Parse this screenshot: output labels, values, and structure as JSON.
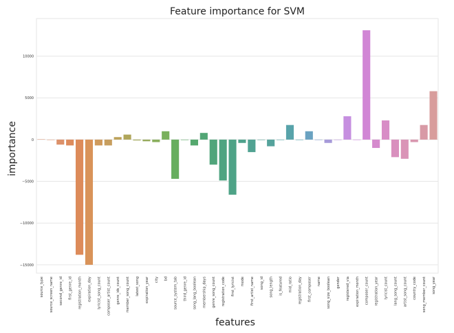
{
  "chart_data": {
    "type": "bar",
    "title": "Feature importance for SVM",
    "xlabel": "features",
    "ylabel": "importance",
    "ylim": [
      -16000,
      14500
    ],
    "yticks": [
      -15000,
      -10000,
      -5000,
      0,
      5000,
      10000
    ],
    "grid": true,
    "categories": [
      "source_type",
      "source_screen_name",
      "second_genre_id",
      "first_genre_id",
      "registration_month",
      "expiration_day",
      "lyricist_song_count",
      "composer_artist_count",
      "genre_ids_count",
      "member_song_count",
      "latest_song",
      "expiration_year",
      "city",
      "bd",
      "source_system_tab",
      "third_genre_id",
      "song_lang_boolean",
      "membership_days",
      "genre_song_count",
      "registration_code",
      "first_lyricist",
      "mode",
      "first_artist_name",
      "song_id",
      "song_length",
      "is_featured",
      "mid_ratio",
      "registration_day",
      "first_composer",
      "name",
      "song_size_boolean",
      "gender",
      "registered_via",
      "expiration_month",
      "composer_count",
      "registration_year",
      "lyricist_count",
      "lang_song_count",
      "artist_song_count",
      "country_code",
      "song_member_count",
      "song_year"
    ],
    "values": [
      50,
      0,
      -600,
      -700,
      -13800,
      -15000,
      -700,
      -700,
      300,
      600,
      -100,
      -200,
      -300,
      1000,
      -4700,
      -50,
      -700,
      800,
      -3000,
      -4900,
      -6600,
      -400,
      -1500,
      -50,
      -800,
      0,
      1750,
      0,
      1000,
      0,
      -400,
      0,
      2800,
      0,
      13100,
      -1000,
      2300,
      -2100,
      -2300,
      -300,
      1750,
      5800
    ],
    "colors": [
      "#e2a88c",
      "#df9e7c",
      "#dc916a",
      "#dd8b5c",
      "#dd8b5a",
      "#d99359",
      "#cf9a5c",
      "#c79e5e",
      "#bca25a",
      "#b0a65b",
      "#a3a85b",
      "#97aa5c",
      "#89ae5c",
      "#79b05c",
      "#67ae5f",
      "#5aaa66",
      "#55a86e",
      "#52a675",
      "#50a57b",
      "#4fa481",
      "#4ea387",
      "#4fa28c",
      "#51a292",
      "#53a297",
      "#55a39c",
      "#57a3a3",
      "#58a3aa",
      "#5aa4b2",
      "#6aa2c1",
      "#88a0cc",
      "#a69ad9",
      "#bb95de",
      "#c68fe0",
      "#cc8bdd",
      "#d186d5",
      "#d58acd",
      "#d88dc6",
      "#d990be",
      "#da94b7",
      "#d997af",
      "#d89aa6",
      "#d89d9c"
    ]
  }
}
